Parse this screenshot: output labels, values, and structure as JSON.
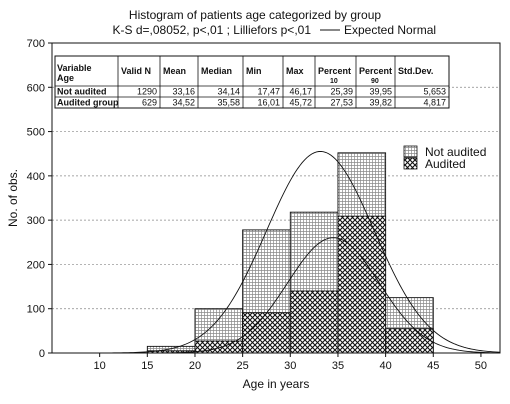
{
  "chart_data": {
    "type": "bar",
    "title": "Histogram of patients age categorized by group",
    "subtitle": "K-S d=,08052, p<,01 ; Lilliefors p<,01",
    "subtitle_legend": "Expected Normal",
    "xlabel": "Age in years",
    "ylabel": "No. of obs.",
    "xlim": [
      5,
      52
    ],
    "ylim": [
      0,
      700
    ],
    "x_ticks": [
      10,
      15,
      20,
      25,
      30,
      35,
      40,
      45,
      50
    ],
    "y_ticks": [
      0,
      100,
      200,
      300,
      400,
      500,
      600,
      700
    ],
    "grid": "horizontal dashed",
    "legend_position": "right",
    "bin_edges": [
      15,
      20,
      25,
      30,
      35,
      40,
      45
    ],
    "series": [
      {
        "name": "Not audited",
        "pattern": "grid",
        "values": [
          15,
          100,
          278,
          318,
          452,
          125
        ]
      },
      {
        "name": "Audited",
        "pattern": "crosshatch",
        "values": [
          5,
          27,
          91,
          140,
          309,
          55
        ]
      }
    ],
    "normal_curves": [
      {
        "series": "Not audited",
        "mean": 33.16,
        "sd": 5.653,
        "n": 1290,
        "bin_width": 5
      },
      {
        "series": "Audited",
        "mean": 34.52,
        "sd": 4.817,
        "n": 629,
        "bin_width": 5
      }
    ],
    "stats_table": {
      "corner": [
        "Variable",
        "Age"
      ],
      "headers": [
        "Valid N",
        "Mean",
        "Median",
        "Min",
        "Max",
        "Percent 10",
        "Percent 90",
        "Std.Dev."
      ],
      "rows": [
        {
          "label": "Not audited",
          "cells": [
            "1290",
            "33,16",
            "34,14",
            "17,47",
            "46,17",
            "25,39",
            "39,95",
            "5,653"
          ]
        },
        {
          "label": "Audited group",
          "cells": [
            "629",
            "34,52",
            "35,58",
            "16,01",
            "45,72",
            "27,53",
            "39,82",
            "4,817"
          ]
        }
      ]
    }
  }
}
